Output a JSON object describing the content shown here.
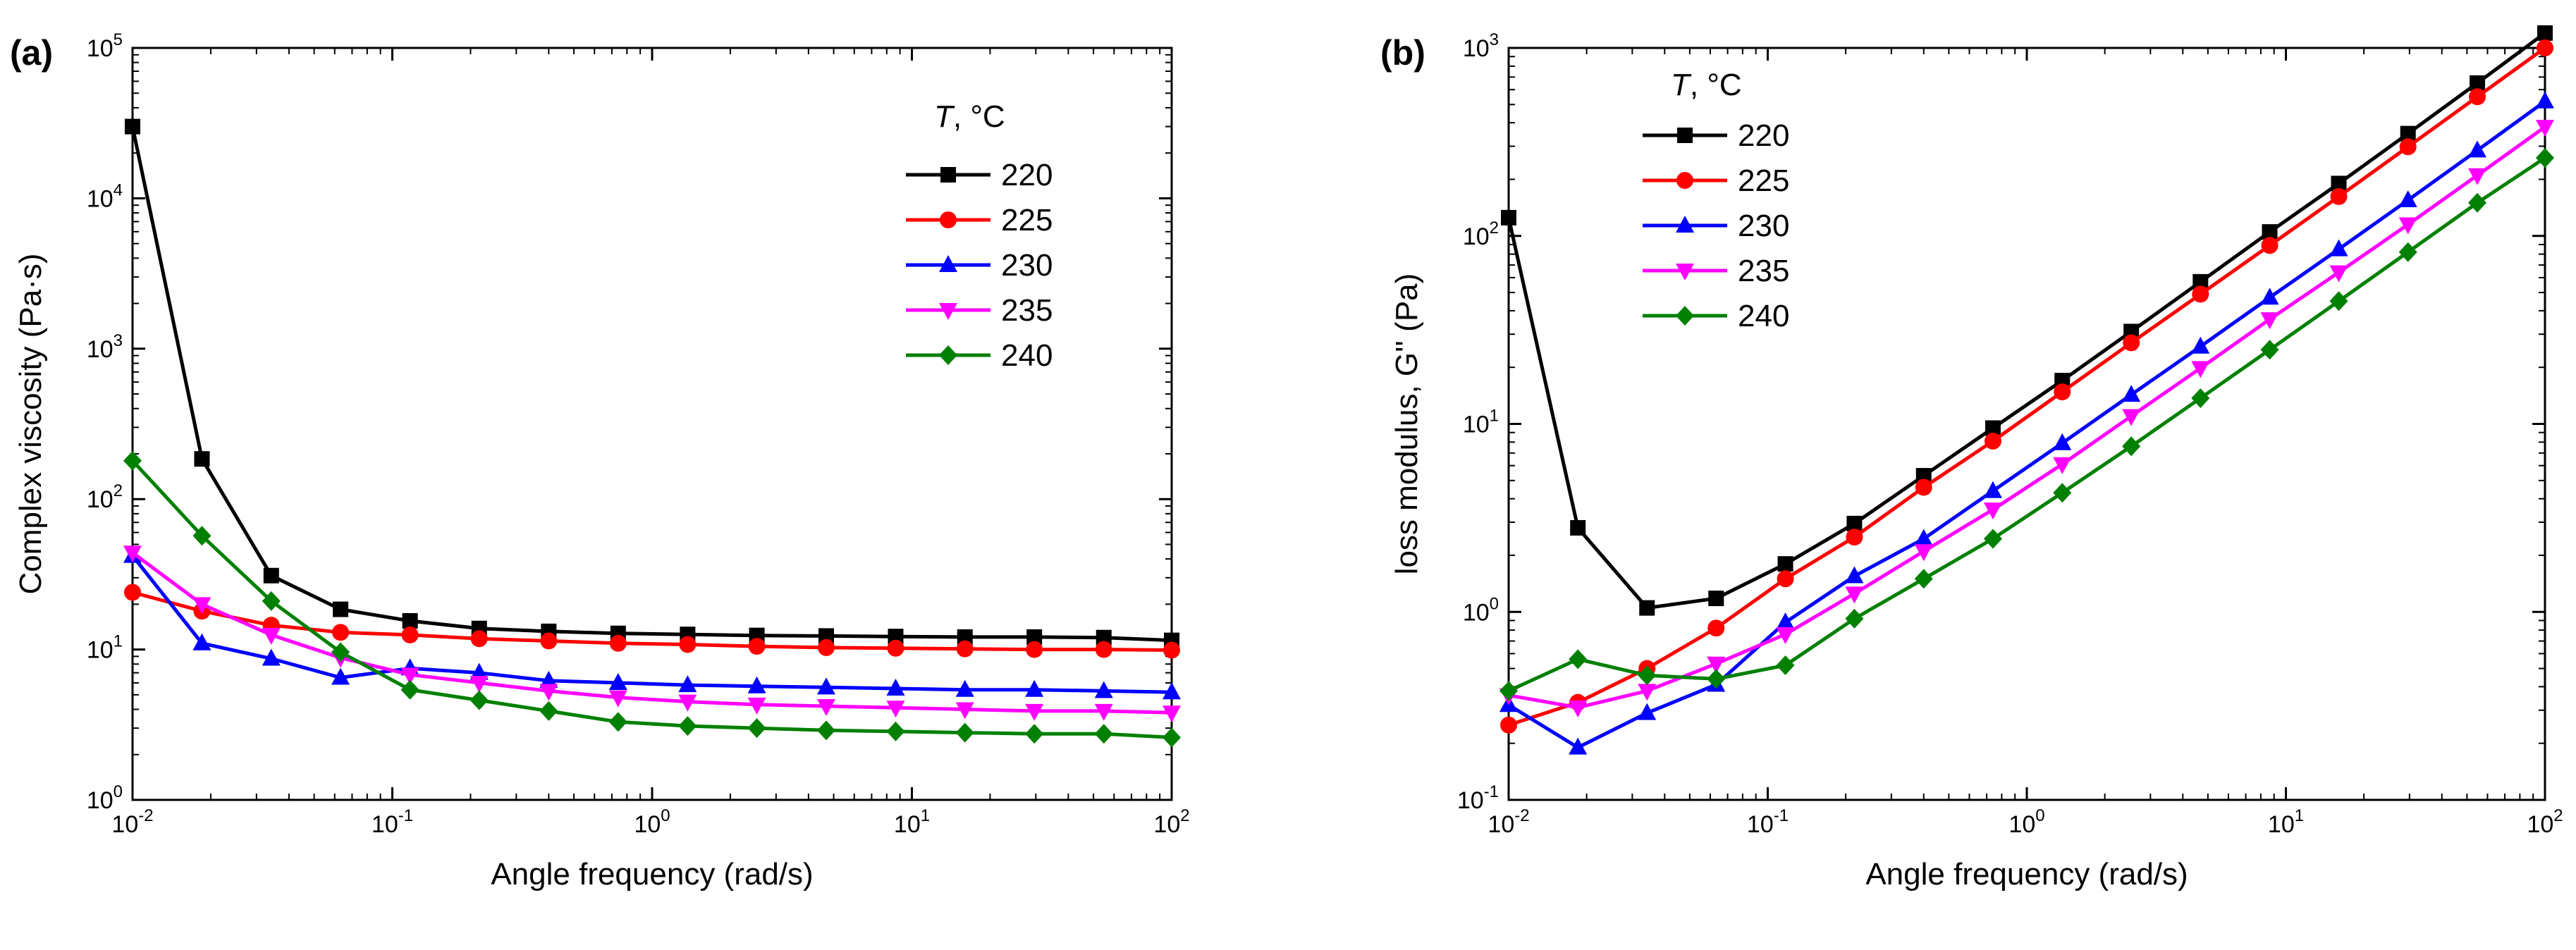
{
  "chart_data": [
    {
      "type": "line",
      "panel_label": "(a)",
      "xlabel": "Angle frequency (rad/s)",
      "ylabel": "Complex viscosity (Pa·s)",
      "xscale": "log",
      "yscale": "log",
      "xlim": [
        0.01,
        100
      ],
      "ylim": [
        1,
        100000
      ],
      "xticks": [
        "10-2",
        "10-1",
        "100",
        "101",
        "102"
      ],
      "yticks": [
        "100",
        "101",
        "102",
        "103",
        "104",
        "105"
      ],
      "legend_title_var": "T",
      "legend_title_unit": ", °C",
      "legend_position": "top-right",
      "x": [
        0.01,
        0.0185,
        0.0342,
        0.0632,
        0.117,
        0.216,
        0.4,
        0.74,
        1.37,
        2.53,
        4.68,
        8.66,
        16,
        29.6,
        54.8,
        100
      ],
      "series": [
        {
          "name": "220",
          "color": "#000000",
          "marker": "square",
          "values": [
            30000,
            185,
            31,
            18.5,
            15.5,
            13.8,
            13.2,
            12.8,
            12.6,
            12.4,
            12.3,
            12.2,
            12.1,
            12.1,
            12,
            11.5
          ]
        },
        {
          "name": "225",
          "color": "#ff0000",
          "marker": "circle",
          "values": [
            24,
            18,
            14.5,
            13,
            12.5,
            11.8,
            11.4,
            11,
            10.8,
            10.5,
            10.3,
            10.2,
            10.1,
            10,
            10,
            9.9
          ]
        },
        {
          "name": "230",
          "color": "#0000ff",
          "marker": "triangle-up",
          "values": [
            42,
            11,
            8.7,
            6.5,
            7.5,
            7,
            6.2,
            6,
            5.8,
            5.7,
            5.6,
            5.5,
            5.4,
            5.4,
            5.3,
            5.2
          ]
        },
        {
          "name": "235",
          "color": "#ff00ff",
          "marker": "triangle-down",
          "values": [
            44,
            20,
            12.5,
            8.8,
            6.8,
            6,
            5.3,
            4.8,
            4.5,
            4.3,
            4.2,
            4.1,
            4,
            3.9,
            3.9,
            3.8
          ]
        },
        {
          "name": "240",
          "color": "#008000",
          "marker": "diamond",
          "values": [
            180,
            57,
            21,
            9.6,
            5.4,
            4.6,
            3.9,
            3.3,
            3.1,
            3,
            2.9,
            2.85,
            2.8,
            2.75,
            2.75,
            2.6
          ]
        }
      ]
    },
    {
      "type": "line",
      "panel_label": "(b)",
      "xlabel": "Angle frequency (rad/s)",
      "ylabel": "loss modulus, G'' (Pa)",
      "xscale": "log",
      "yscale": "log",
      "xlim": [
        0.01,
        100
      ],
      "ylim": [
        0.1,
        1000
      ],
      "xticks": [
        "10-2",
        "10-1",
        "100",
        "101",
        "102"
      ],
      "yticks": [
        "10-1",
        "100",
        "101",
        "102",
        "103"
      ],
      "legend_title_var": "T",
      "legend_title_unit": ", °C",
      "legend_position": "top-left",
      "x": [
        0.01,
        0.0185,
        0.0342,
        0.0632,
        0.117,
        0.216,
        0.4,
        0.74,
        1.37,
        2.53,
        4.68,
        8.66,
        16,
        29.6,
        54.8,
        100
      ],
      "series": [
        {
          "name": "220",
          "color": "#000000",
          "marker": "square",
          "values": [
            125,
            2.8,
            1.05,
            1.18,
            1.8,
            2.95,
            5.3,
            9.5,
            17,
            31,
            57,
            105,
            190,
            350,
            650,
            1200
          ]
        },
        {
          "name": "225",
          "color": "#ff0000",
          "marker": "circle",
          "values": [
            0.25,
            0.33,
            0.5,
            0.82,
            1.5,
            2.5,
            4.6,
            8.1,
            14.8,
            27,
            49,
            89,
            162,
            298,
            550,
            1000
          ]
        },
        {
          "name": "230",
          "color": "#0000ff",
          "marker": "triangle-up",
          "values": [
            0.32,
            0.19,
            0.29,
            0.41,
            0.88,
            1.55,
            2.45,
            4.4,
            7.9,
            14.3,
            25.8,
            47,
            85,
            155,
            285,
            520
          ]
        },
        {
          "name": "235",
          "color": "#ff00ff",
          "marker": "triangle-down",
          "values": [
            0.36,
            0.31,
            0.38,
            0.53,
            0.76,
            1.25,
            2.1,
            3.5,
            6.1,
            11,
            19.8,
            36,
            64,
            115,
            210,
            380
          ]
        },
        {
          "name": "240",
          "color": "#008000",
          "marker": "diamond",
          "values": [
            0.38,
            0.56,
            0.46,
            0.44,
            0.52,
            0.92,
            1.5,
            2.45,
            4.3,
            7.6,
            13.7,
            24.8,
            45,
            82,
            150,
            260
          ]
        }
      ]
    }
  ]
}
